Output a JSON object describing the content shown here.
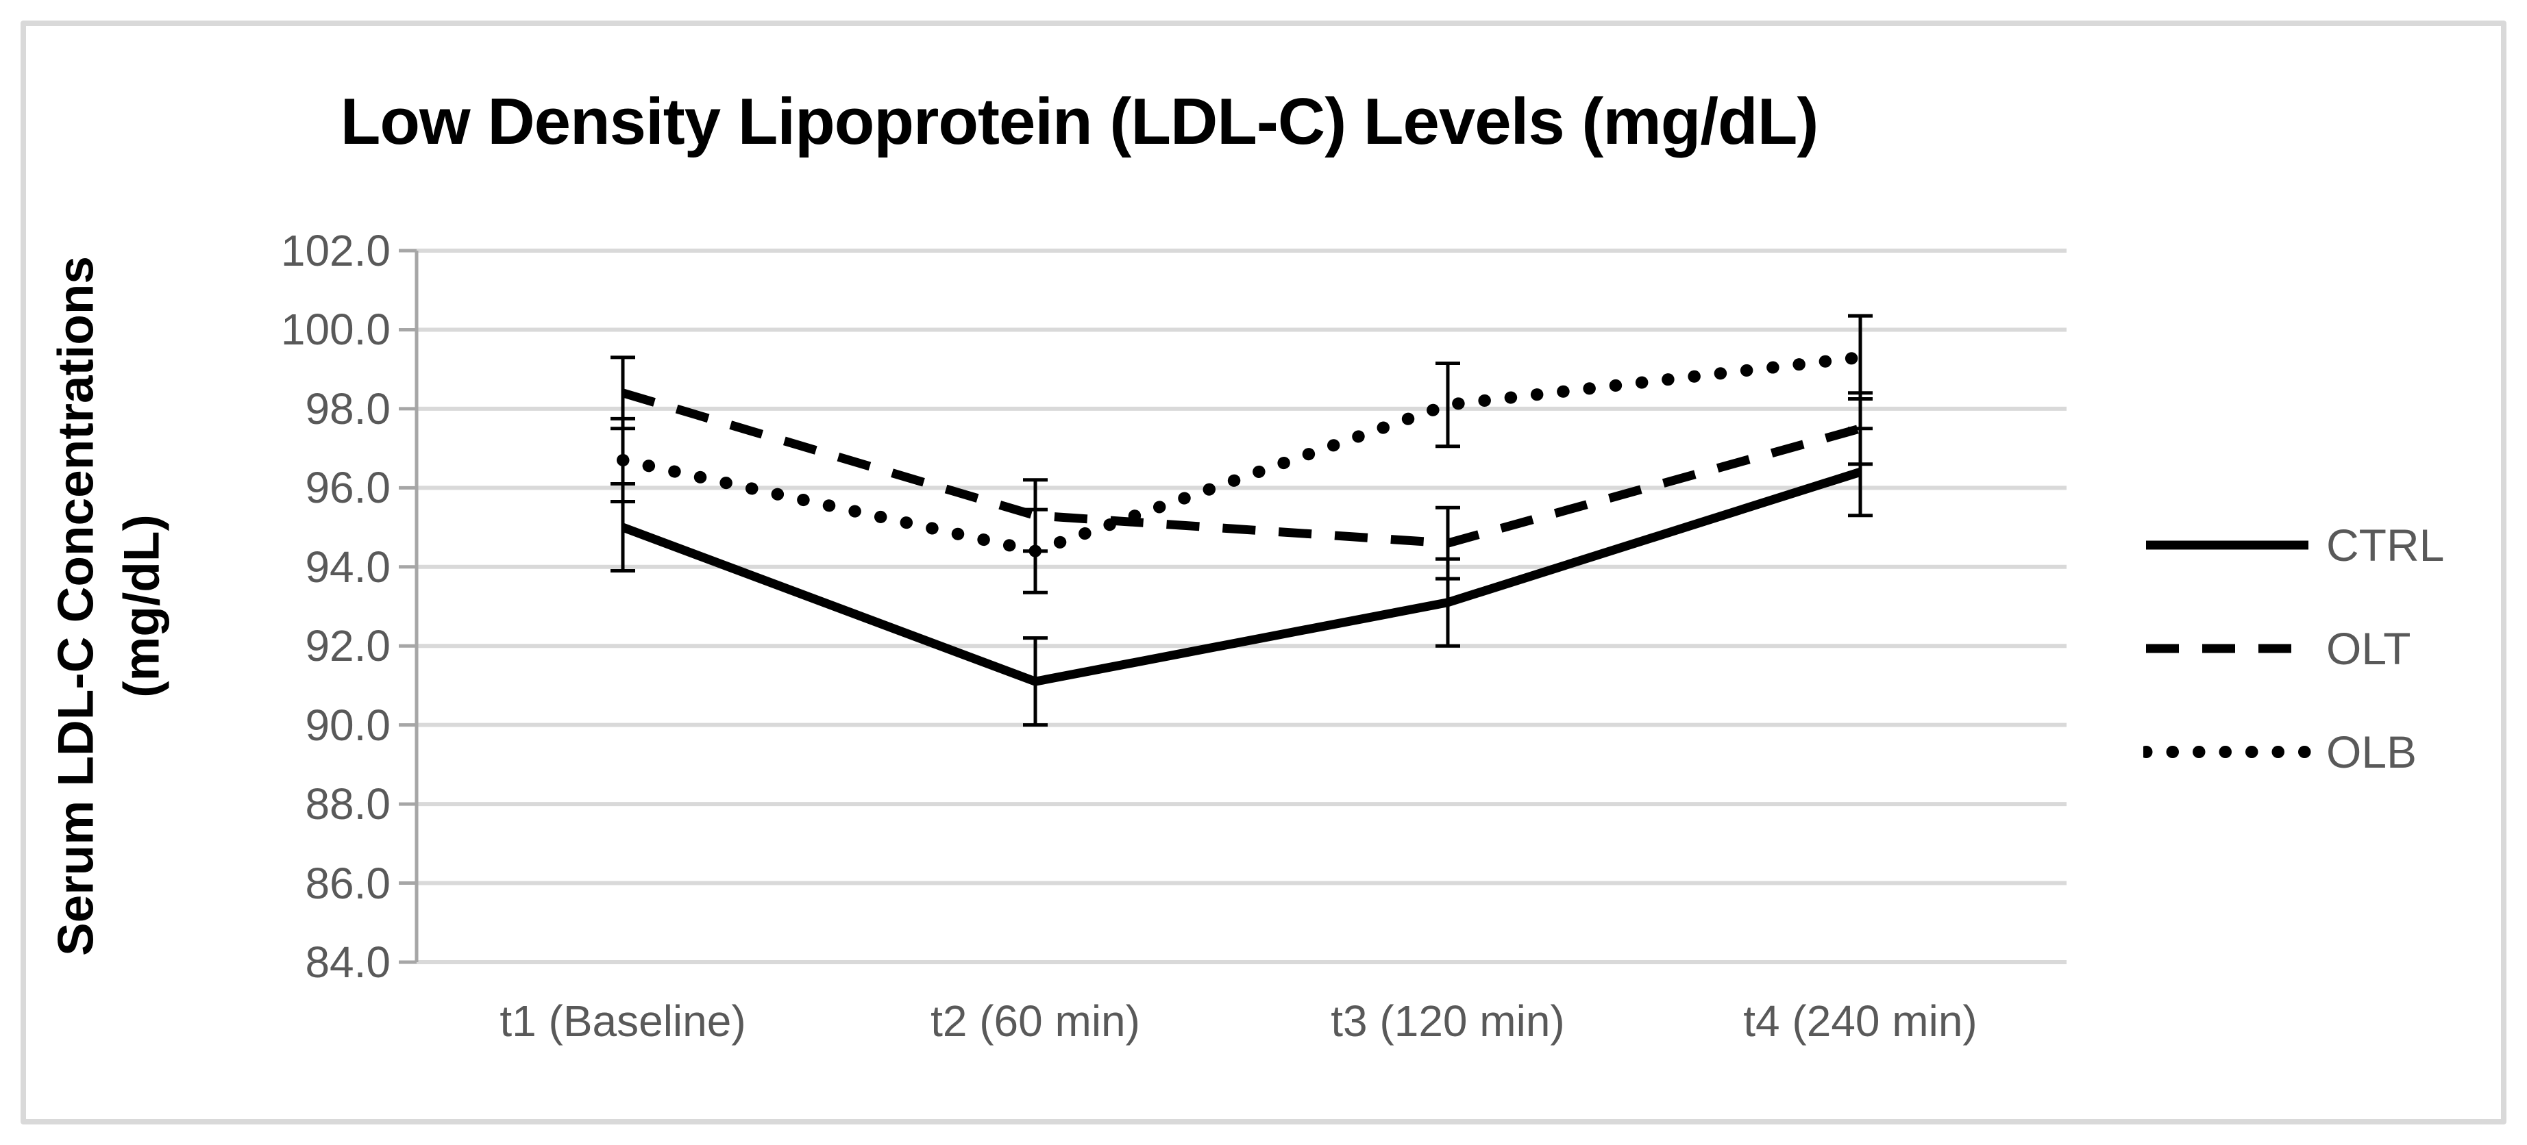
{
  "chart": {
    "title": "Low Density Lipoprotein (LDL-C) Levels (mg/dL)",
    "y_axis_title_line1": "Serum LDL-C Concentrations",
    "y_axis_title_line2": "(mg/dL)"
  },
  "chart_data": {
    "type": "line",
    "title": "Low Density Lipoprotein (LDL-C) Levels (mg/dL)",
    "categories": [
      "t1 (Baseline)",
      "t2 (60 min)",
      "t3 (120 min)",
      "t4 (240 min)"
    ],
    "series": [
      {
        "name": "CTRL",
        "line_style": "solid",
        "values": [
          95.0,
          91.1,
          93.1,
          96.4
        ],
        "error_bar": 1.1
      },
      {
        "name": "OLT",
        "line_style": "dashed",
        "values": [
          98.4,
          95.3,
          94.6,
          97.5
        ],
        "error_bar": 0.9
      },
      {
        "name": "OLB",
        "line_style": "dotted",
        "values": [
          96.7,
          94.4,
          98.1,
          99.3
        ],
        "error_bar": 1.05
      }
    ],
    "xlabel": "",
    "ylabel": "Serum LDL-C Concentrations (mg/dL)",
    "ylim": [
      84.0,
      102.0
    ],
    "ytick_step": 2.0,
    "ytick_decimals": 1,
    "grid": true,
    "legend_position": "right",
    "colors": {
      "series": "#000000",
      "gridline": "#D9D9D9",
      "axis_line": "#A6A6A6",
      "tick_label": "#595959",
      "legend_label": "#595959",
      "title": "#000000",
      "border": "#D9D9D9",
      "background": "#FFFFFF"
    }
  }
}
